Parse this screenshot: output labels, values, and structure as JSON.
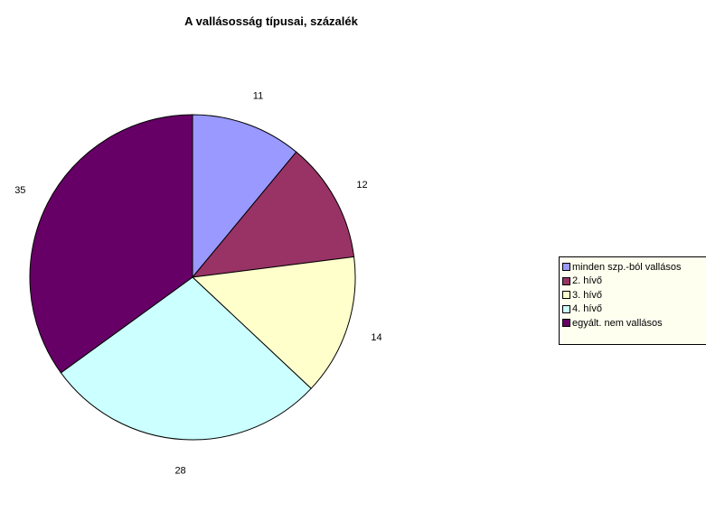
{
  "chart_data": {
    "type": "pie",
    "title": "A vallásosság típusai, százalék",
    "categories": [
      "minden szp.-ból vallásos",
      "2. hívő",
      "3. hívő",
      "4. hívő",
      "egyált. nem vallásos"
    ],
    "values": [
      11,
      12,
      14,
      28,
      35
    ],
    "data_labels": [
      "11",
      "12",
      "14",
      "28",
      "35"
    ],
    "colors": [
      "#9999ff",
      "#993366",
      "#ffffcc",
      "#ccffff",
      "#660066"
    ],
    "legend_position": "right"
  }
}
